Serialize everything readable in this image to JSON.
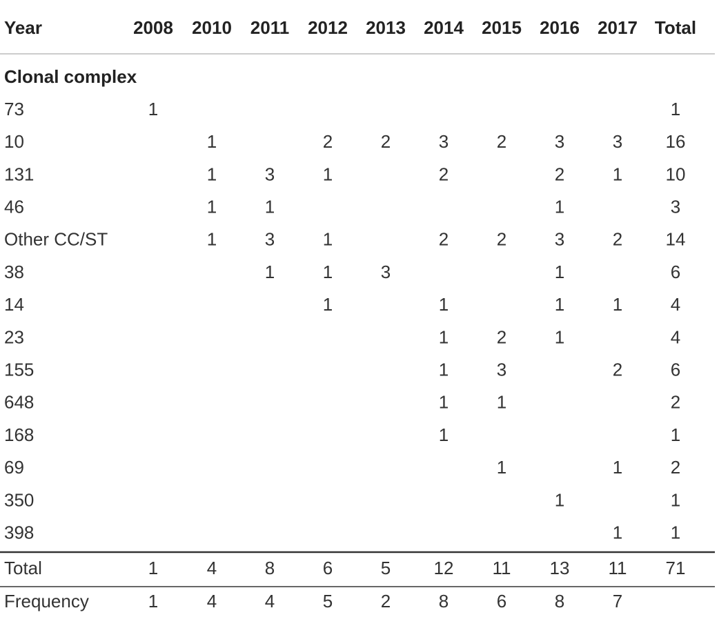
{
  "table": {
    "header": [
      "Year",
      "2008",
      "2010",
      "2011",
      "2012",
      "2013",
      "2014",
      "2015",
      "2016",
      "2017",
      "Total"
    ],
    "section": "Clonal complex",
    "rows": [
      [
        "73",
        1,
        null,
        null,
        null,
        null,
        null,
        null,
        null,
        null,
        1
      ],
      [
        "10",
        null,
        1,
        null,
        2,
        2,
        3,
        2,
        3,
        3,
        16
      ],
      [
        "131",
        null,
        1,
        3,
        1,
        null,
        2,
        null,
        2,
        1,
        10
      ],
      [
        "46",
        null,
        1,
        1,
        null,
        null,
        null,
        null,
        1,
        null,
        3
      ],
      [
        "Other CC/ST",
        null,
        1,
        3,
        1,
        null,
        2,
        2,
        3,
        2,
        14
      ],
      [
        "38",
        null,
        null,
        1,
        1,
        3,
        null,
        null,
        1,
        null,
        6
      ],
      [
        "14",
        null,
        null,
        null,
        1,
        null,
        1,
        null,
        1,
        1,
        4
      ],
      [
        "23",
        null,
        null,
        null,
        null,
        null,
        1,
        2,
        1,
        null,
        4
      ],
      [
        "155",
        null,
        null,
        null,
        null,
        null,
        1,
        3,
        null,
        2,
        6
      ],
      [
        "648",
        null,
        null,
        null,
        null,
        null,
        1,
        1,
        null,
        null,
        2
      ],
      [
        "168",
        null,
        null,
        null,
        null,
        null,
        1,
        null,
        null,
        null,
        1
      ],
      [
        "69",
        null,
        null,
        null,
        null,
        null,
        null,
        1,
        null,
        1,
        2
      ],
      [
        "350",
        null,
        null,
        null,
        null,
        null,
        null,
        null,
        1,
        null,
        1
      ],
      [
        "398",
        null,
        null,
        null,
        null,
        null,
        null,
        null,
        null,
        1,
        1
      ]
    ],
    "total": [
      "Total",
      1,
      4,
      8,
      6,
      5,
      12,
      11,
      13,
      11,
      71
    ],
    "frequency": [
      "Frequency",
      1,
      4,
      4,
      5,
      2,
      8,
      6,
      8,
      7,
      null
    ]
  }
}
